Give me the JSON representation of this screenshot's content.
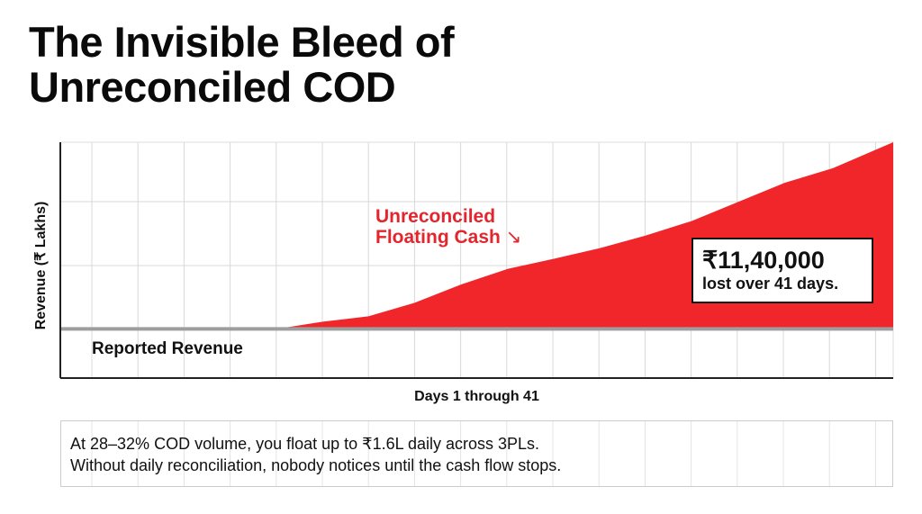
{
  "title_line1": "The Invisible Bleed of",
  "title_line2": "Unreconciled COD",
  "chart_data": {
    "type": "area",
    "title": "The Invisible Bleed of Unreconciled COD",
    "xlabel": "Days 1 through 41",
    "ylabel": "Revenue (₹ Lakhs)",
    "xlim": [
      1,
      41
    ],
    "ylim": [
      -3,
      11.4
    ],
    "grid": true,
    "series": [
      {
        "name": "Reported Revenue",
        "color": "#9e9e9e",
        "x": [
          1,
          41
        ],
        "values": [
          0,
          0
        ]
      },
      {
        "name": "Unreconciled Floating Cash",
        "color": "#f0262b",
        "x": [
          11.4,
          13.6,
          15.8,
          18.0,
          20.3,
          22.5,
          24.7,
          26.9,
          29.1,
          31.3,
          33.6,
          35.8,
          38.1,
          41
        ],
        "values": [
          0,
          0.44,
          0.77,
          1.59,
          2.74,
          3.67,
          4.28,
          4.93,
          5.7,
          6.58,
          7.78,
          8.93,
          9.81,
          11.4
        ]
      }
    ],
    "annotations": {
      "area_label_line1": "Unreconciled",
      "area_label_line2": "Floating Cash",
      "baseline_label": "Reported Revenue",
      "callout_amount": "₹11,40,000",
      "callout_text": "lost over 41 days."
    }
  },
  "note_line1": "At 28–32% COD volume, you float up to ₹1.6L daily across 3PLs.",
  "note_line2": "Without daily reconciliation, nobody notices until the cash flow stops."
}
